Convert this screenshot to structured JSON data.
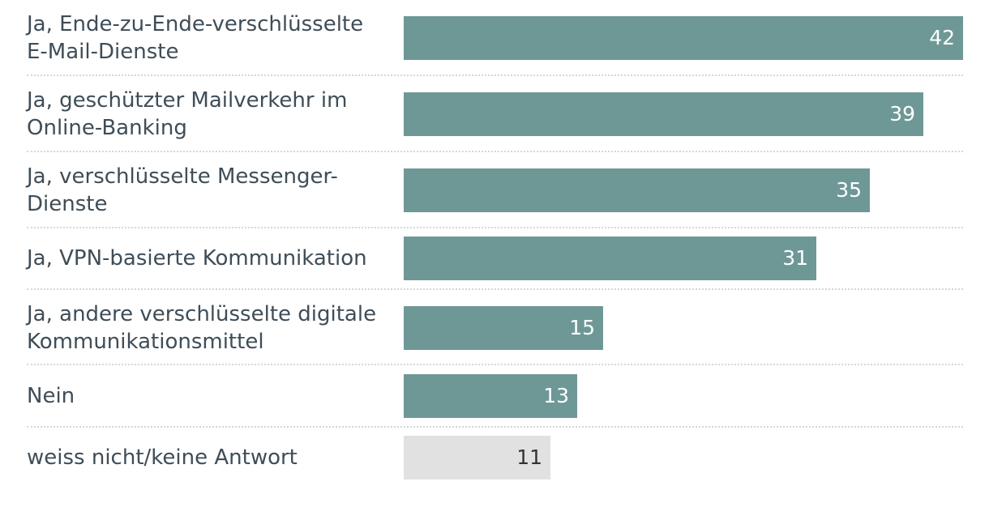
{
  "chart_data": {
    "type": "bar",
    "orientation": "horizontal",
    "title": "",
    "xlabel": "",
    "ylabel": "",
    "xlim": [
      0,
      42
    ],
    "categories": [
      "Ja, Ende-zu-Ende-verschlüsselte\nE-Mail-Dienste",
      "Ja, geschützter Mailverkehr im\nOnline-Banking",
      "Ja, verschlüsselte Messenger-\nDienste",
      "Ja, VPN-basierte Kommunikation",
      "Ja, andere verschlüsselte digitale\nKommunikationsmittel",
      "Nein",
      "weiss nicht/keine Antwort"
    ],
    "values": [
      42,
      39,
      35,
      31,
      15,
      13,
      11
    ],
    "bar_colors": [
      "#6e9896",
      "#6e9896",
      "#6e9896",
      "#6e9896",
      "#6e9896",
      "#6e9896",
      "#e1e1e1"
    ],
    "value_label_colors": [
      "#ffffff",
      "#ffffff",
      "#ffffff",
      "#ffffff",
      "#ffffff",
      "#ffffff",
      "#333333"
    ]
  }
}
